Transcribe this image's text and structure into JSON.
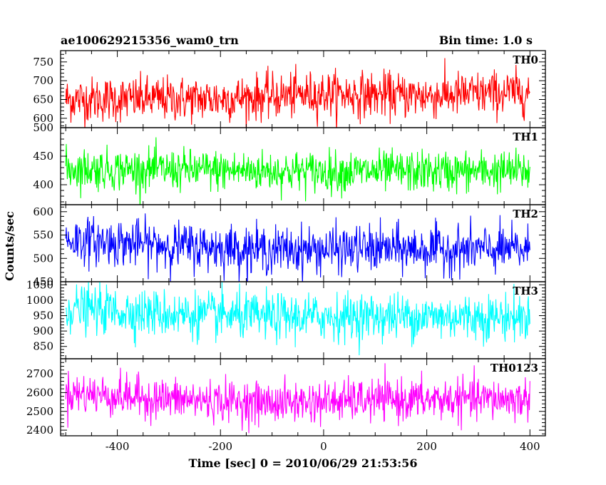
{
  "header": {
    "title": "ae100629215356_wam0_trn",
    "bin_time": "Bin time: 1.0 s"
  },
  "chart_data": {
    "type": "line",
    "title": "ae100629215356_wam0_trn",
    "subtitle": "Bin time: 1.0 s",
    "xlabel": "Time [sec] 0 = 2010/06/29 21:53:56",
    "ylabel": "Counts/sec",
    "xlim": [
      -510,
      430
    ],
    "x_ticks": [
      -400,
      -200,
      0,
      200,
      400
    ],
    "x_range": [
      -500,
      400
    ],
    "bin_time_s": 1.0,
    "grid": false,
    "panels": [
      {
        "name": "TH0",
        "color": "#ff0000",
        "ylim": [
          575,
          780
        ],
        "y_ticks": [
          600,
          650,
          700,
          750
        ],
        "mean": 655,
        "noise": 30,
        "trend": [
          {
            "x": -500,
            "y": 650
          },
          {
            "x": -200,
            "y": 652
          },
          {
            "x": 0,
            "y": 665
          },
          {
            "x": 200,
            "y": 660
          },
          {
            "x": 400,
            "y": 670
          }
        ]
      },
      {
        "name": "TH1",
        "color": "#00ff00",
        "ylim": [
          365,
          500
        ],
        "y_ticks": [
          400,
          450,
          500
        ],
        "mean": 425,
        "noise": 18,
        "trend": [
          {
            "x": -500,
            "y": 428
          },
          {
            "x": -200,
            "y": 425
          },
          {
            "x": 0,
            "y": 423
          },
          {
            "x": 200,
            "y": 423
          },
          {
            "x": 400,
            "y": 424
          }
        ]
      },
      {
        "name": "TH2",
        "color": "#0000ff",
        "ylim": [
          450,
          615
        ],
        "y_ticks": [
          450,
          500,
          550,
          600
        ],
        "mean": 522,
        "noise": 25,
        "trend": [
          {
            "x": -500,
            "y": 540
          },
          {
            "x": -300,
            "y": 528
          },
          {
            "x": -100,
            "y": 518
          },
          {
            "x": 100,
            "y": 520
          },
          {
            "x": 400,
            "y": 518
          }
        ]
      },
      {
        "name": "TH3",
        "color": "#00ffff",
        "ylim": [
          810,
          1060
        ],
        "y_ticks": [
          850,
          900,
          950,
          1000,
          1050
        ],
        "mean": 950,
        "noise": 38,
        "trend": [
          {
            "x": -500,
            "y": 975
          },
          {
            "x": -300,
            "y": 955
          },
          {
            "x": -100,
            "y": 945
          },
          {
            "x": 100,
            "y": 948
          },
          {
            "x": 400,
            "y": 945
          }
        ]
      },
      {
        "name": "TH0123",
        "color": "#ff00ff",
        "ylim": [
          2370,
          2780
        ],
        "y_ticks": [
          2400,
          2500,
          2600,
          2700
        ],
        "mean": 2560,
        "noise": 55,
        "trend": [
          {
            "x": -500,
            "y": 2600
          },
          {
            "x": -300,
            "y": 2565
          },
          {
            "x": -100,
            "y": 2545
          },
          {
            "x": 100,
            "y": 2560
          },
          {
            "x": 400,
            "y": 2565
          }
        ]
      }
    ]
  }
}
